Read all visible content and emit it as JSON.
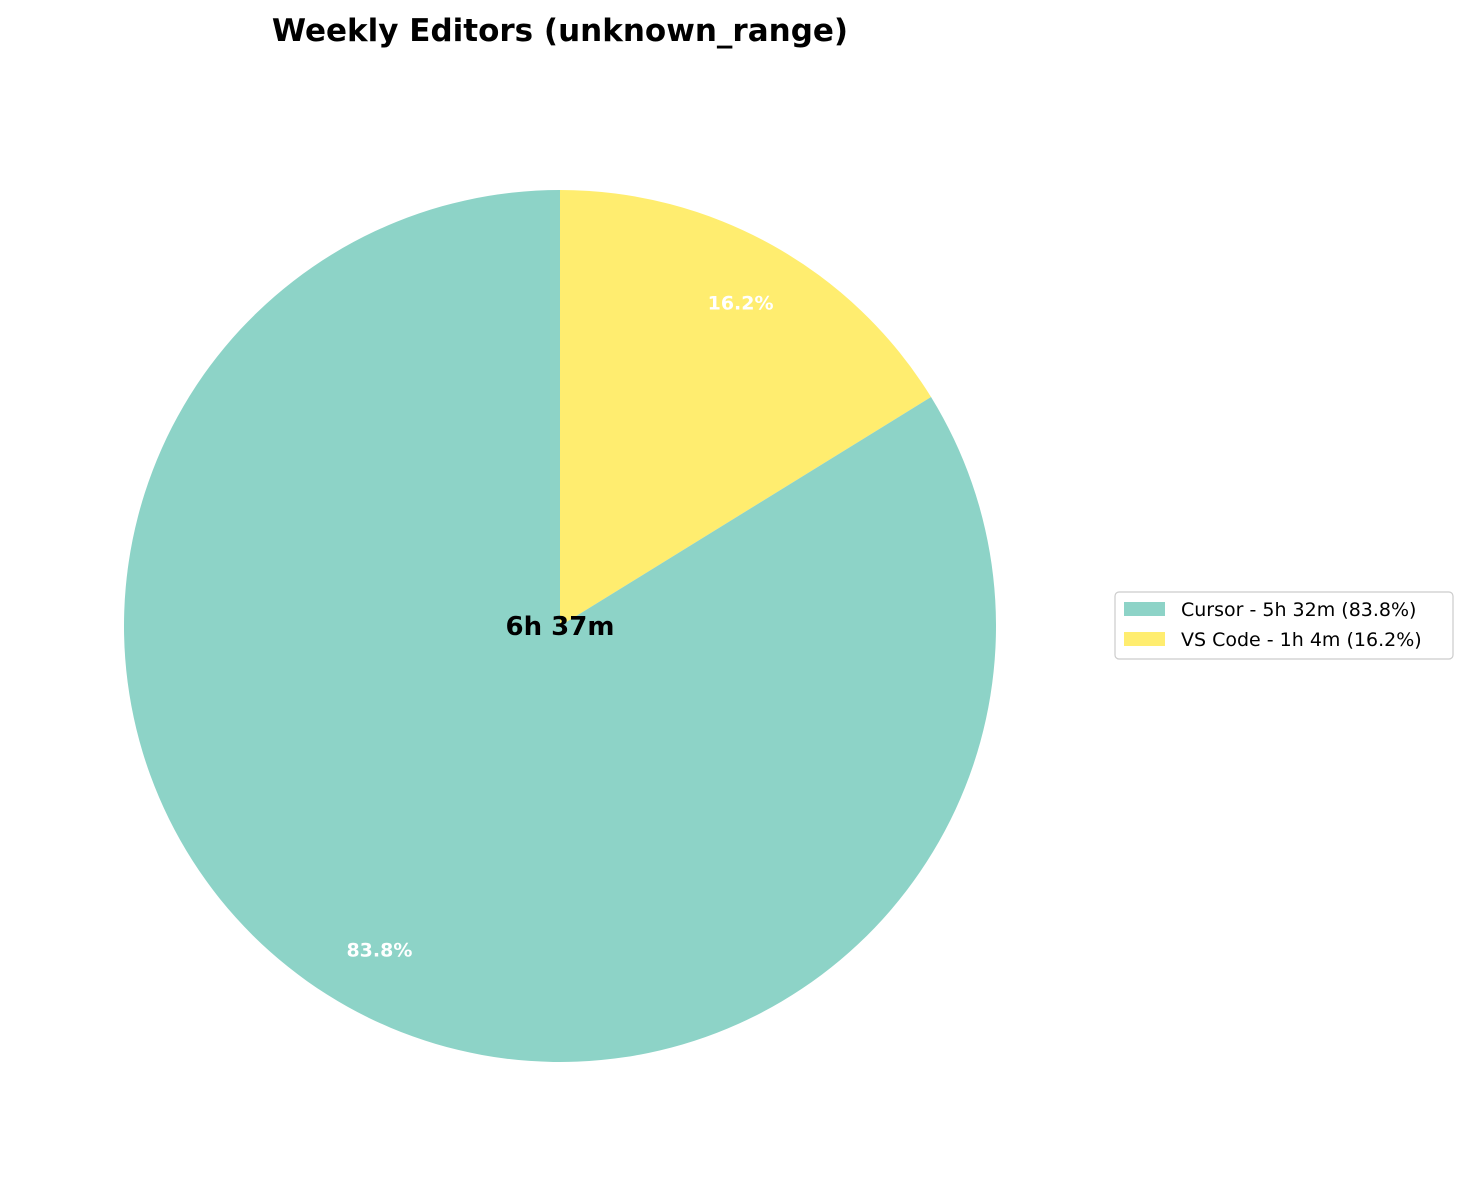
{
  "chart_data": {
    "type": "pie",
    "title": "Weekly Editors (unknown_range)",
    "center_label": "6h 37m",
    "start_angle_deg": 90,
    "direction": "clockwise",
    "slices": [
      {
        "name": "VS Code",
        "value": 16.2,
        "label": "16.2%",
        "color": "#ffed6f",
        "legend": "VS Code - 1h 4m (16.2%)"
      },
      {
        "name": "Cursor",
        "value": 83.8,
        "label": "83.8%",
        "color": "#8dd3c7",
        "legend": "Cursor - 5h 32m (83.8%)"
      }
    ],
    "legend_order": [
      1,
      0
    ],
    "legend_placement": "right"
  }
}
